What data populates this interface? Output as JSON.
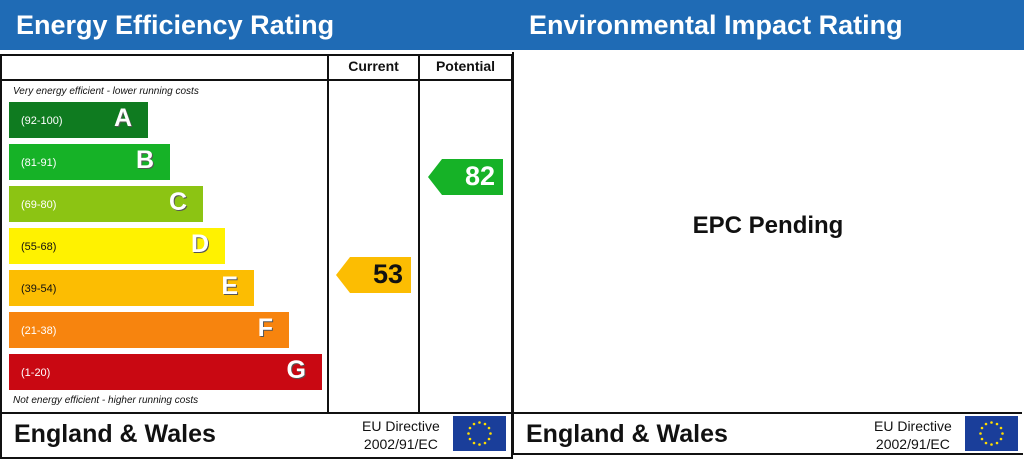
{
  "energy": {
    "title": "Energy Efficiency Rating",
    "col_current": "Current",
    "col_potential": "Potential",
    "note_top": "Very energy efficient - lower running costs",
    "note_bottom": "Not energy efficient - higher running costs",
    "bands": [
      {
        "letter": "A",
        "range": "(92-100)",
        "color": "#0f7b20",
        "text_color": "#ffffff"
      },
      {
        "letter": "B",
        "range": "(81-91)",
        "color": "#16b227",
        "text_color": "#ffffff"
      },
      {
        "letter": "C",
        "range": "(69-80)",
        "color": "#8cc413",
        "text_color": "#ffffff"
      },
      {
        "letter": "D",
        "range": "(55-68)",
        "color": "#fff200",
        "text_color": "#111111"
      },
      {
        "letter": "E",
        "range": "(39-54)",
        "color": "#fcbd02",
        "text_color": "#111111"
      },
      {
        "letter": "F",
        "range": "(21-38)",
        "color": "#f7840e",
        "text_color": "#ffffff"
      },
      {
        "letter": "G",
        "range": "(1-20)",
        "color": "#c90812",
        "text_color": "#ffffff"
      }
    ],
    "current": {
      "value": "53",
      "band": "E",
      "color": "#fcbd02",
      "text_color": "#111111"
    },
    "potential": {
      "value": "82",
      "band": "B",
      "color": "#16b227",
      "text_color": "#ffffff"
    },
    "footer": {
      "region": "England & Wales",
      "directive_line1": "EU Directive",
      "directive_line2": "2002/91/EC"
    }
  },
  "environmental": {
    "title": "Environmental Impact Rating",
    "status": "EPC Pending",
    "footer": {
      "region": "England & Wales",
      "directive_line1": "EU Directive",
      "directive_line2": "2002/91/EC"
    }
  },
  "colors": {
    "title_bar": "#1f6bb5",
    "flag": "#1a3e9a",
    "stars": "#ffdd00"
  },
  "chart_data": {
    "type": "bar",
    "title": "Energy Efficiency Rating",
    "categories": [
      "A (92-100)",
      "B (81-91)",
      "C (69-80)",
      "D (55-68)",
      "E (39-54)",
      "F (21-38)",
      "G (1-20)"
    ],
    "series": [
      {
        "name": "Current",
        "values": [
          53
        ]
      },
      {
        "name": "Potential",
        "values": [
          82
        ]
      }
    ],
    "current_rating": {
      "value": 53,
      "band": "E"
    },
    "potential_rating": {
      "value": 82,
      "band": "B"
    },
    "annotations": [
      "Very energy efficient - lower running costs",
      "Not energy efficient - higher running costs"
    ],
    "environmental_impact": "EPC Pending"
  }
}
